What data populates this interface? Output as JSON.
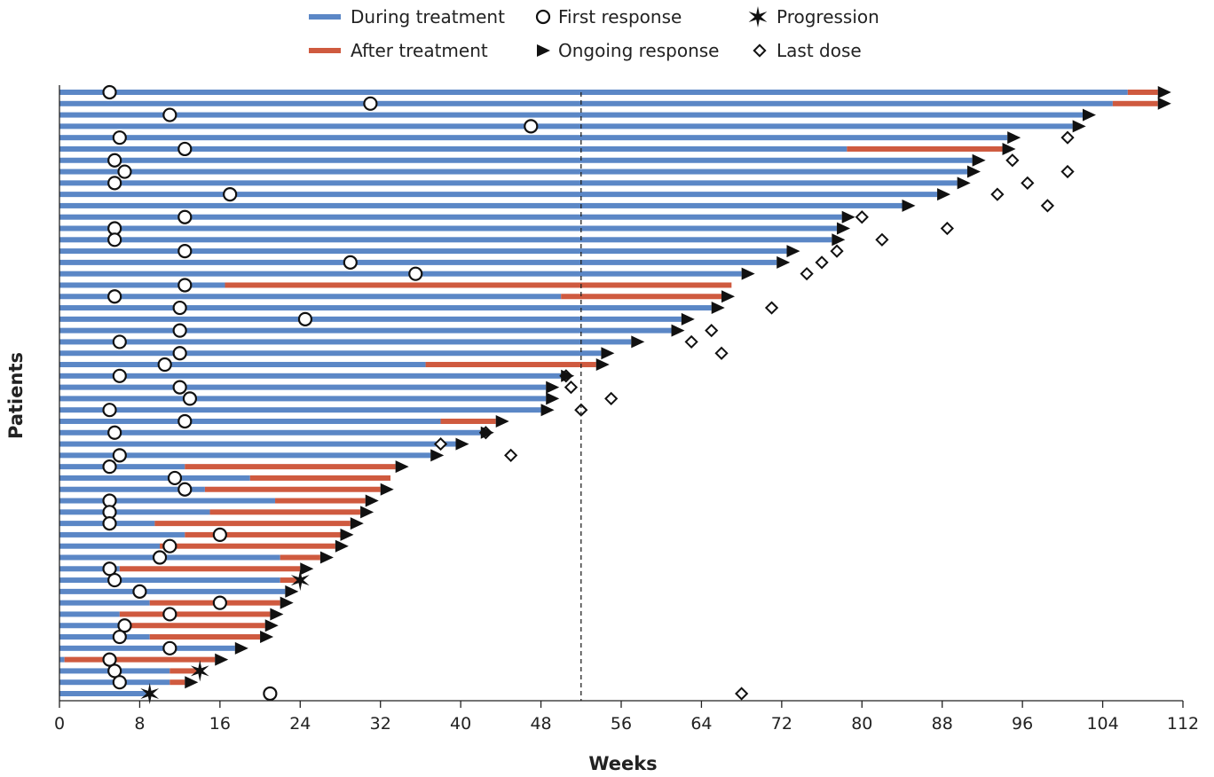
{
  "chart_data": {
    "type": "swimmer",
    "xlabel": "Weeks",
    "ylabel": "Patients",
    "xlim": [
      0,
      112
    ],
    "xticks": [
      0,
      8,
      16,
      24,
      32,
      40,
      48,
      56,
      64,
      72,
      80,
      88,
      96,
      104,
      112
    ],
    "reference_line_week": 52,
    "colors": {
      "during": "#5b87c6",
      "after": "#cf5a3f",
      "marker": "#111111"
    },
    "legend": [
      {
        "key": "during",
        "label": "During treatment"
      },
      {
        "key": "after",
        "label": "After treatment"
      },
      {
        "key": "first_response",
        "label": "First response"
      },
      {
        "key": "ongoing",
        "label": "Ongoing response"
      },
      {
        "key": "progression",
        "label": "Progression"
      },
      {
        "key": "last_dose",
        "label": "Last dose"
      }
    ],
    "patients": [
      {
        "during": [
          0,
          106.5
        ],
        "after": [
          106.5,
          109.5
        ],
        "first_response": 5,
        "end": "ongoing"
      },
      {
        "during": [
          0,
          105
        ],
        "after": [
          105,
          109.5
        ],
        "first_response": 31,
        "end": "ongoing"
      },
      {
        "during": [
          0,
          102
        ],
        "first_response": 11,
        "end": "ongoing"
      },
      {
        "during": [
          0,
          101
        ],
        "first_response": 47,
        "end": "ongoing"
      },
      {
        "during": [
          0,
          94.5
        ],
        "first_response": 6,
        "end": "ongoing",
        "last_dose": 100.5
      },
      {
        "during": [
          0,
          78.5
        ],
        "after": [
          78.5,
          94
        ],
        "first_response": 12.5,
        "end": "ongoing"
      },
      {
        "during": [
          0,
          91
        ],
        "first_response": 5.5,
        "end": "ongoing",
        "last_dose": 95
      },
      {
        "during": [
          0,
          90.5
        ],
        "first_response": 6.5,
        "end": "ongoing",
        "last_dose": 100.5
      },
      {
        "during": [
          0,
          89.5
        ],
        "first_response": 5.5,
        "end": "ongoing",
        "last_dose": 96.5
      },
      {
        "during": [
          0,
          87.5
        ],
        "first_response": 17,
        "end": "ongoing",
        "last_dose": 93.5
      },
      {
        "during": [
          0,
          84
        ],
        "first_response": null,
        "end": "ongoing",
        "last_dose": 98.5
      },
      {
        "during": [
          0,
          78
        ],
        "first_response": 12.5,
        "end": "ongoing",
        "last_dose": 80
      },
      {
        "during": [
          0,
          77.5
        ],
        "first_response": 5.5,
        "end": "ongoing",
        "last_dose": 88.5
      },
      {
        "during": [
          0,
          77
        ],
        "first_response": 5.5,
        "end": "ongoing",
        "last_dose": 82
      },
      {
        "during": [
          0,
          72.5
        ],
        "first_response": 12.5,
        "end": "ongoing",
        "last_dose": 77.5
      },
      {
        "during": [
          0,
          71.5
        ],
        "first_response": 29,
        "end": "ongoing",
        "last_dose": 76
      },
      {
        "during": [
          0,
          68
        ],
        "first_response": 35.5,
        "end": "ongoing",
        "last_dose": 74.5
      },
      {
        "during": [
          0,
          16.5
        ],
        "after": [
          16.5,
          67
        ],
        "first_response": 12.5,
        "end": null
      },
      {
        "during": [
          0,
          50
        ],
        "after": [
          50,
          66
        ],
        "first_response": 5.5,
        "end": "ongoing"
      },
      {
        "during": [
          0,
          65
        ],
        "first_response": 12,
        "end": "ongoing",
        "last_dose": 71
      },
      {
        "during": [
          0,
          62
        ],
        "first_response": 24.5,
        "end": "ongoing"
      },
      {
        "during": [
          0,
          61
        ],
        "first_response": 12,
        "end": "ongoing",
        "last_dose": 65
      },
      {
        "during": [
          0,
          57
        ],
        "first_response": 6,
        "end": "ongoing",
        "last_dose": 63
      },
      {
        "during": [
          0,
          54
        ],
        "first_response": 12,
        "end": "ongoing",
        "last_dose": 66
      },
      {
        "during": [
          0,
          36.5
        ],
        "after": [
          36.5,
          53.5
        ],
        "first_response": 10.5,
        "end": "ongoing"
      },
      {
        "during": [
          0,
          50
        ],
        "first_response": 6,
        "end": "ongoing",
        "last_dose": 50.5
      },
      {
        "during": [
          0,
          48.5
        ],
        "first_response": 12,
        "end": "ongoing",
        "last_dose": 51
      },
      {
        "during": [
          0,
          48.5
        ],
        "first_response": 13,
        "end": "ongoing",
        "last_dose": 55
      },
      {
        "during": [
          0,
          48
        ],
        "first_response": 5,
        "end": "ongoing",
        "last_dose": 52
      },
      {
        "during": [
          0,
          38
        ],
        "after": [
          38,
          43.5
        ],
        "first_response": 12.5,
        "end": "ongoing"
      },
      {
        "during": [
          0,
          42
        ],
        "first_response": 5.5,
        "end": "ongoing",
        "last_dose": 42.5
      },
      {
        "during": [
          0,
          39.5
        ],
        "first_response": null,
        "end": "ongoing",
        "last_dose": 38
      },
      {
        "during": [
          0,
          37
        ],
        "first_response": 6,
        "end": "ongoing",
        "last_dose": 45
      },
      {
        "during": [
          0,
          12.5
        ],
        "after": [
          12.5,
          33.5
        ],
        "first_response": 5,
        "end": "ongoing"
      },
      {
        "during": [
          0,
          19
        ],
        "after": [
          19,
          33
        ],
        "first_response": 11.5,
        "end": null
      },
      {
        "during": [
          0,
          14.5
        ],
        "after": [
          14.5,
          32
        ],
        "first_response": 12.5,
        "end": "ongoing"
      },
      {
        "during": [
          0,
          21.5
        ],
        "after": [
          21.5,
          30.5
        ],
        "first_response": 5,
        "end": "ongoing"
      },
      {
        "during": [
          0,
          15
        ],
        "after": [
          15,
          30
        ],
        "first_response": 5,
        "end": "ongoing"
      },
      {
        "during": [
          0,
          9.5
        ],
        "after": [
          9.5,
          29
        ],
        "first_response": 5,
        "end": "ongoing"
      },
      {
        "during": [
          0,
          12.5
        ],
        "after": [
          12.5,
          28
        ],
        "first_response": 16,
        "end": "ongoing"
      },
      {
        "during": [
          0,
          10
        ],
        "after": [
          10,
          27.5
        ],
        "first_response": 11,
        "end": "ongoing"
      },
      {
        "during": [
          0,
          22
        ],
        "after": [
          22,
          26
        ],
        "first_response": 10,
        "end": "ongoing"
      },
      {
        "during": [
          0,
          6
        ],
        "after": [
          6,
          24
        ],
        "first_response": 5,
        "end": "ongoing"
      },
      {
        "during": [
          0,
          22
        ],
        "after": [
          22,
          24
        ],
        "first_response": 5.5,
        "end": "progression"
      },
      {
        "during": [
          0,
          22.5
        ],
        "first_response": 8,
        "end": "ongoing"
      },
      {
        "during": [
          0,
          9
        ],
        "after": [
          9,
          22
        ],
        "first_response": 16,
        "end": "ongoing"
      },
      {
        "during": [
          0,
          6
        ],
        "after": [
          6,
          21
        ],
        "first_response": 11,
        "end": "ongoing"
      },
      {
        "during": [
          0,
          7
        ],
        "after": [
          7,
          20.5
        ],
        "first_response": 6.5,
        "end": "ongoing"
      },
      {
        "during": [
          0,
          9
        ],
        "after": [
          9,
          20
        ],
        "first_response": 6,
        "end": "ongoing"
      },
      {
        "during": [
          0,
          17.5
        ],
        "first_response": 11,
        "end": "ongoing"
      },
      {
        "during": [
          0,
          0.5
        ],
        "after": [
          0.5,
          15.5
        ],
        "first_response": 5,
        "end": "ongoing"
      },
      {
        "during": [
          0,
          11
        ],
        "after": [
          11,
          14
        ],
        "first_response": 5.5,
        "end": "progression"
      },
      {
        "during": [
          0,
          11
        ],
        "after": [
          11,
          12.5
        ],
        "first_response": 6,
        "end": "ongoing"
      },
      {
        "during": [
          0,
          9
        ],
        "first_response": 21,
        "end": "progression",
        "last_dose": 68
      }
    ]
  }
}
